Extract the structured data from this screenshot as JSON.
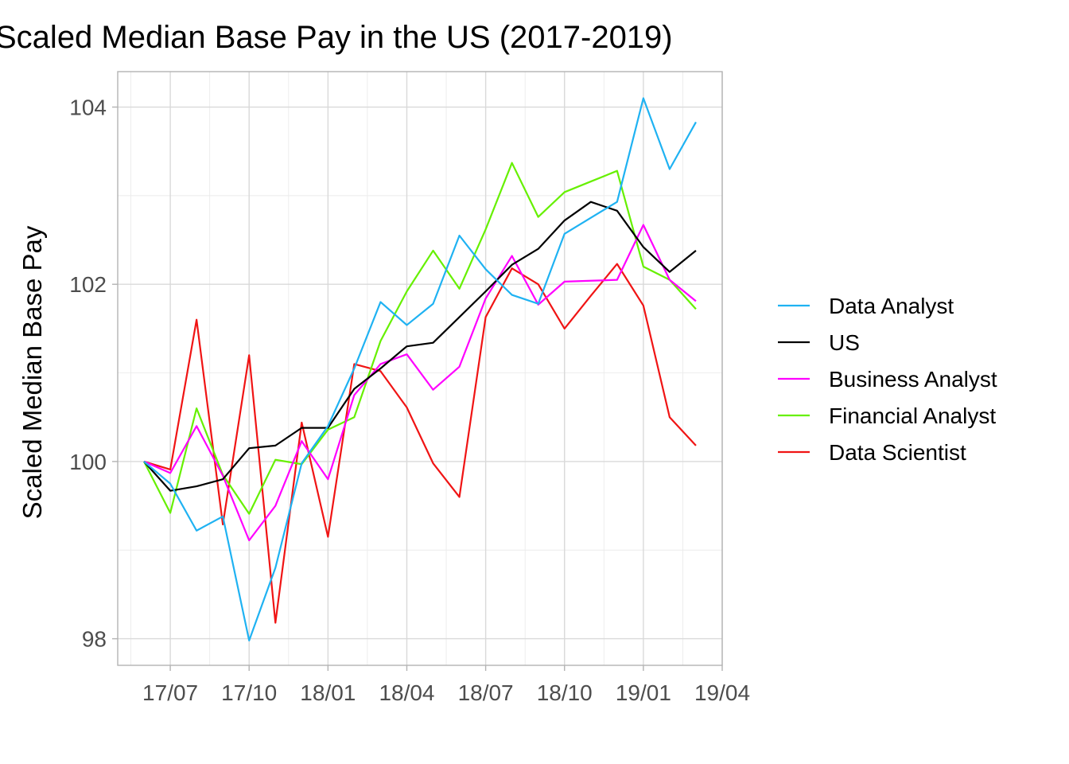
{
  "chart_data": {
    "type": "line",
    "title": "Scaled Median Base Pay in the US (2017-2019)",
    "xlabel": "",
    "ylabel": "Scaled Median Base Pay",
    "x_tick_labels": [
      "17/07",
      "17/10",
      "18/01",
      "18/04",
      "18/07",
      "18/10",
      "19/01",
      "19/04"
    ],
    "y_ticks": [
      98,
      100,
      102,
      104
    ],
    "xlim": [
      "2017-05",
      "2019-04"
    ],
    "ylim": [
      97.7,
      104.4
    ],
    "grid": true,
    "legend_position": "right",
    "x": [
      "2017-06",
      "2017-07",
      "2017-08",
      "2017-09",
      "2017-10",
      "2017-11",
      "2017-12",
      "2018-01",
      "2018-02",
      "2018-03",
      "2018-04",
      "2018-05",
      "2018-06",
      "2018-07",
      "2018-08",
      "2018-09",
      "2018-10",
      "2018-11",
      "2018-12",
      "2019-01",
      "2019-02",
      "2019-03"
    ],
    "series": [
      {
        "name": "Data Analyst",
        "color": "#1fb2f2",
        "values": [
          100.0,
          99.75,
          99.22,
          99.38,
          97.98,
          98.8,
          99.98,
          100.4,
          101.05,
          101.8,
          101.54,
          101.78,
          102.55,
          102.17,
          101.88,
          101.78,
          102.57,
          102.75,
          102.93,
          104.1,
          103.3,
          103.83
        ]
      },
      {
        "name": "US",
        "color": "#000000",
        "values": [
          100.0,
          99.67,
          99.72,
          99.8,
          100.15,
          100.18,
          100.38,
          100.38,
          100.82,
          101.05,
          101.3,
          101.34,
          101.63,
          101.92,
          102.22,
          102.4,
          102.72,
          102.93,
          102.83,
          102.42,
          102.14,
          102.38
        ]
      },
      {
        "name": "Business Analyst",
        "color": "#ff00ff",
        "values": [
          100.0,
          99.87,
          100.4,
          99.84,
          99.11,
          99.5,
          100.23,
          99.8,
          100.75,
          101.1,
          101.21,
          100.81,
          101.07,
          101.84,
          102.32,
          101.77,
          102.03,
          102.04,
          102.05,
          102.67,
          102.05,
          101.81
        ]
      },
      {
        "name": "Financial Analyst",
        "color": "#66f000",
        "values": [
          100.0,
          99.42,
          100.6,
          99.85,
          99.41,
          100.02,
          99.97,
          100.36,
          100.5,
          101.36,
          101.92,
          102.38,
          101.95,
          102.62,
          103.37,
          102.76,
          103.04,
          103.16,
          103.28,
          102.2,
          102.05,
          101.72
        ]
      },
      {
        "name": "Data Scientist",
        "color": "#f01414",
        "values": [
          100.0,
          99.91,
          101.6,
          99.29,
          101.2,
          98.18,
          100.44,
          99.15,
          101.1,
          101.02,
          100.61,
          99.98,
          99.6,
          101.63,
          102.18,
          102.0,
          101.5,
          101.87,
          102.23,
          101.76,
          100.5,
          100.18
        ]
      }
    ]
  }
}
